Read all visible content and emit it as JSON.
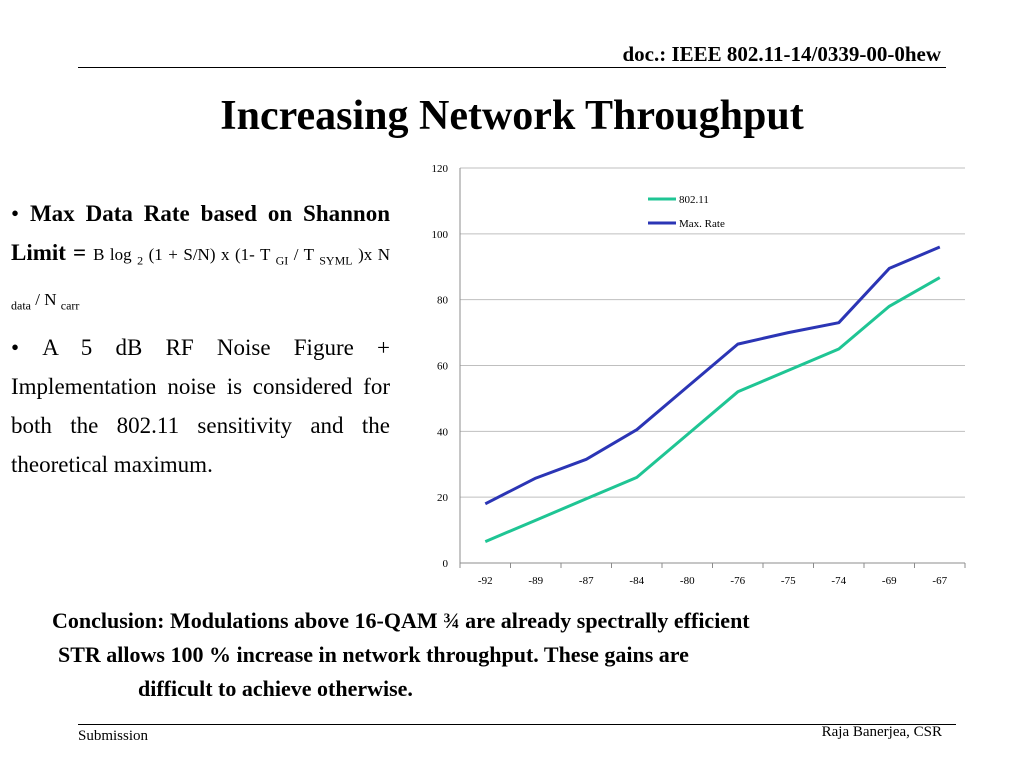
{
  "header": {
    "doc_id": "doc.: IEEE 802.11-14/0339-00-0hew"
  },
  "title": "Increasing Network Throughput",
  "bullets": {
    "b1_lead": "Max Data Rate based on Shannon Limit",
    "b1_eq": "=",
    "b1_f1": "B log",
    "b1_sub1": "2",
    "b1_f2": "(1 + S/N) x (1- T",
    "b1_sub2": "GI",
    "b1_f3": "/ T",
    "b1_sub3": "SYML",
    "b1_f4": ")x N",
    "b1_sub4": "data",
    "b1_f5": "/ N",
    "b1_sub5": "carr",
    "b2": "A 5 dB RF Noise Figure + Implementation noise is considered for both the 802.11 sensitivity and the theoretical maximum."
  },
  "conclusion": {
    "line1": "Conclusion:  Modulations above 16-QAM ¾ are already spectrally efficient",
    "line2": "STR allows 100 % increase in network throughput. These gains are",
    "line3": "difficult to achieve otherwise."
  },
  "footer": {
    "left": "Submission",
    "right": "Raja Banerjea, CSR"
  },
  "chart_data": {
    "type": "line",
    "categories": [
      "-92",
      "-89",
      "-87",
      "-84",
      "-80",
      "-76",
      "-75",
      "-74",
      "-69",
      "-67"
    ],
    "series": [
      {
        "name": "802.11",
        "color": "#1fc594",
        "values": [
          6.5,
          13,
          19.5,
          26,
          39,
          52,
          58.5,
          65,
          78,
          86.7
        ]
      },
      {
        "name": "Max. Rate",
        "color": "#2b35b5",
        "values": [
          18,
          25.8,
          31.5,
          40.5,
          53.5,
          66.5,
          70,
          73,
          89.5,
          96
        ]
      }
    ],
    "ylim": [
      0,
      120
    ],
    "yticks": [
      0,
      20,
      40,
      60,
      80,
      100,
      120
    ],
    "grid": true,
    "legend": "top-right"
  }
}
